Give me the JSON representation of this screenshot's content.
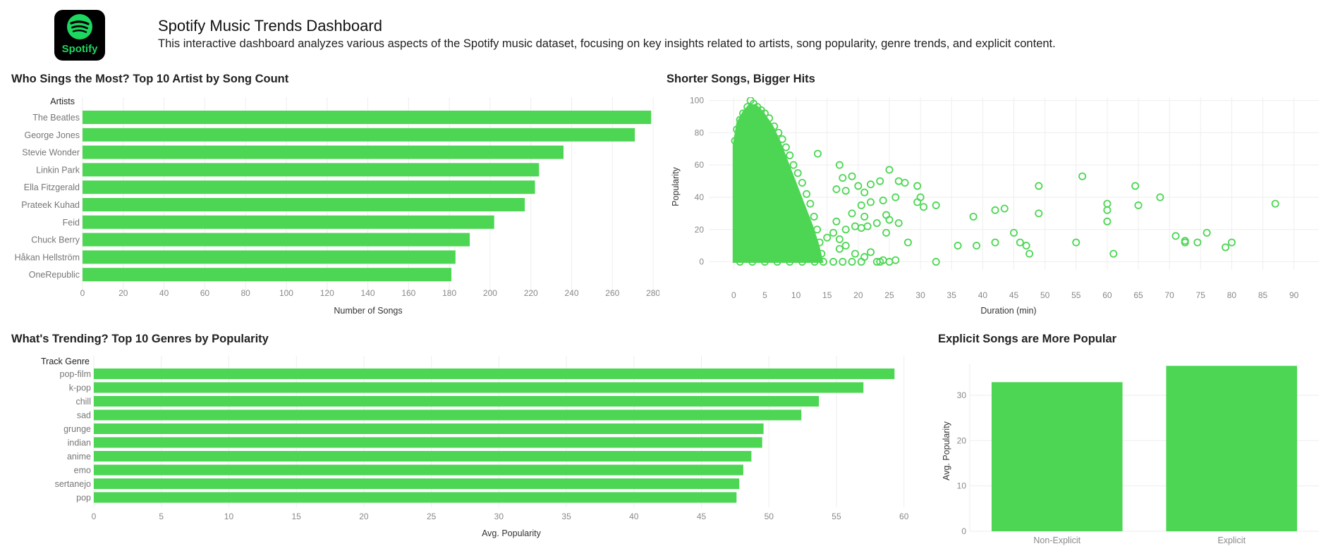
{
  "header": {
    "logo_text": "Spotify",
    "title": "Spotify Music Trends Dashboard",
    "description": "This interactive dashboard analyzes various aspects of the Spotify music dataset, focusing on key insights related to artists, song popularity, genre trends, and explicit content."
  },
  "colors": {
    "bar": "#4CD653",
    "grid": "#eeeeee",
    "axis_text": "#888888",
    "brand_green": "#1ED760"
  },
  "chart_data": [
    {
      "id": "artists",
      "type": "bar",
      "orientation": "horizontal",
      "title": "Who Sings the Most? Top 10 Artist by Song Count",
      "category_header": "Artists",
      "xlabel": "Number of Songs",
      "xlim": [
        0,
        290
      ],
      "xticks": [
        0,
        20,
        40,
        60,
        80,
        100,
        120,
        140,
        160,
        180,
        200,
        220,
        240,
        260,
        280
      ],
      "categories": [
        "The Beatles",
        "George Jones",
        "Stevie Wonder",
        "Linkin Park",
        "Ella Fitzgerald",
        "Prateek Kuhad",
        "Feid",
        "Chuck Berry",
        "Håkan Hellström",
        "OneRepublic"
      ],
      "values": [
        279,
        271,
        236,
        224,
        222,
        217,
        202,
        190,
        183,
        181
      ],
      "grid": true
    },
    {
      "id": "scatter",
      "type": "scatter",
      "title": "Shorter Songs, Bigger Hits",
      "xlabel": "Duration (min)",
      "ylabel": "Popularity",
      "xlim": [
        -4,
        94
      ],
      "ylim": [
        -5,
        102
      ],
      "xticks": [
        0,
        5,
        10,
        15,
        20,
        25,
        30,
        35,
        40,
        45,
        50,
        55,
        60,
        65,
        70,
        75,
        80,
        85,
        90
      ],
      "yticks": [
        0,
        20,
        40,
        60,
        80,
        100
      ],
      "grid": true,
      "marker": "hollow-circle",
      "outliers": [
        [
          13.5,
          67
        ],
        [
          17,
          60
        ],
        [
          17.5,
          52
        ],
        [
          19,
          53
        ],
        [
          20,
          47
        ],
        [
          21,
          43
        ],
        [
          22,
          48
        ],
        [
          23.5,
          50
        ],
        [
          25,
          57
        ],
        [
          26,
          40
        ],
        [
          26.5,
          50
        ],
        [
          27.5,
          49
        ],
        [
          29.5,
          47
        ],
        [
          30,
          40
        ],
        [
          29.5,
          37
        ],
        [
          30.5,
          34
        ],
        [
          32.5,
          35
        ],
        [
          16.5,
          45
        ],
        [
          18,
          44
        ],
        [
          20.5,
          35
        ],
        [
          22,
          37
        ],
        [
          24,
          38
        ],
        [
          19,
          30
        ],
        [
          21,
          28
        ],
        [
          23,
          24
        ],
        [
          24.5,
          29
        ],
        [
          25,
          26
        ],
        [
          26.5,
          24
        ],
        [
          24.5,
          18
        ],
        [
          28,
          12
        ],
        [
          16.5,
          25
        ],
        [
          18,
          20
        ],
        [
          19.5,
          22
        ],
        [
          20.5,
          21
        ],
        [
          21.5,
          22
        ],
        [
          17,
          14
        ],
        [
          15,
          15
        ],
        [
          16,
          18
        ],
        [
          17,
          8
        ],
        [
          18,
          10
        ],
        [
          19.5,
          5
        ],
        [
          21,
          3
        ],
        [
          22,
          6
        ],
        [
          23,
          0
        ],
        [
          24,
          1
        ],
        [
          25,
          0
        ],
        [
          26,
          1
        ],
        [
          32.5,
          0
        ],
        [
          23.5,
          0
        ],
        [
          16,
          0
        ],
        [
          17.5,
          0
        ],
        [
          19,
          0
        ],
        [
          20.5,
          0
        ],
        [
          36,
          10
        ],
        [
          38.5,
          28
        ],
        [
          39,
          10
        ],
        [
          42,
          32
        ],
        [
          42,
          12
        ],
        [
          43.5,
          33
        ],
        [
          45,
          18
        ],
        [
          46,
          12
        ],
        [
          47,
          10
        ],
        [
          47.5,
          5
        ],
        [
          49,
          30
        ],
        [
          49,
          47
        ],
        [
          55,
          12
        ],
        [
          56,
          53
        ],
        [
          60,
          36
        ],
        [
          60,
          32
        ],
        [
          60,
          25
        ],
        [
          61,
          5
        ],
        [
          64.5,
          47
        ],
        [
          65,
          35
        ],
        [
          68.5,
          40
        ],
        [
          71,
          16
        ],
        [
          72.5,
          13
        ],
        [
          72.5,
          12
        ],
        [
          74.5,
          12
        ],
        [
          76,
          18
        ],
        [
          79,
          9
        ],
        [
          80,
          12
        ],
        [
          87,
          36
        ]
      ]
    },
    {
      "id": "genres",
      "type": "bar",
      "orientation": "horizontal",
      "title": "What's Trending? Top 10 Genres by Popularity",
      "category_header": "Track Genre",
      "xlabel": "Avg. Popularity",
      "xlim": [
        0,
        62
      ],
      "xticks": [
        0,
        5,
        10,
        15,
        20,
        25,
        30,
        35,
        40,
        45,
        50,
        55,
        60
      ],
      "categories": [
        "pop-film",
        "k-pop",
        "chill",
        "sad",
        "grunge",
        "indian",
        "anime",
        "emo",
        "sertanejo",
        "pop"
      ],
      "values": [
        59.3,
        57.0,
        53.7,
        52.4,
        49.6,
        49.5,
        48.7,
        48.1,
        47.8,
        47.6
      ],
      "grid": true
    },
    {
      "id": "explicit",
      "type": "bar",
      "orientation": "vertical",
      "title": "Explicit Songs are More Popular",
      "ylabel": "Avg. Popularity",
      "ylim": [
        0,
        37
      ],
      "yticks": [
        0,
        10,
        20,
        30
      ],
      "categories": [
        "Non-Explicit",
        "Explicit"
      ],
      "values": [
        32.9,
        36.5
      ],
      "grid": true
    }
  ]
}
